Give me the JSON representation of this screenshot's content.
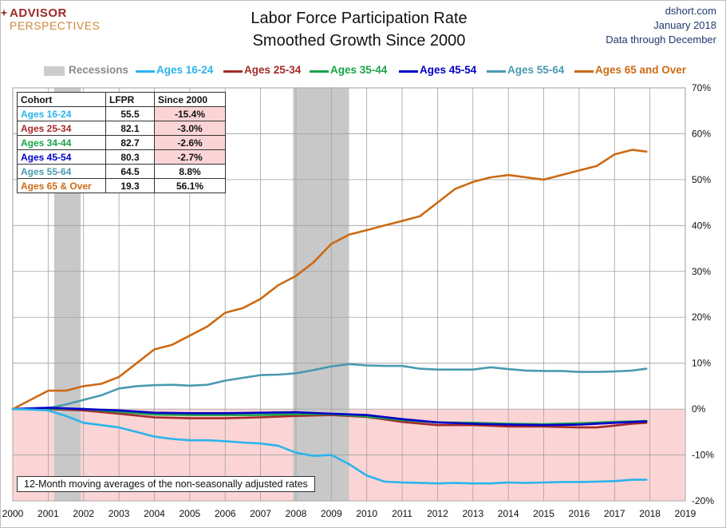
{
  "header": {
    "logo_line1": "ADVISOR",
    "logo_line2": "PERSPECTIVES",
    "title_line1": "Labor Force Participation Rate",
    "title_line2": "Smoothed Growth Since 2000",
    "source_line1": "dshort.com",
    "source_line2": "January 2018",
    "source_line3": "Data through December"
  },
  "legend": {
    "recessions_label": "Recessions",
    "recessions_color": "#c8c8c8"
  },
  "table": {
    "headers": [
      "Cohort",
      "LFPR",
      "Since 2000"
    ],
    "rows": [
      {
        "cohort": "Ages 16-24",
        "lfpr": "55.5",
        "since": "-15.4%",
        "color": "#2ab4ec",
        "negative": true
      },
      {
        "cohort": "Ages 25-34",
        "lfpr": "82.1",
        "since": "-3.0%",
        "color": "#a52a2a",
        "negative": true
      },
      {
        "cohort": "Ages 34-44",
        "lfpr": "82.7",
        "since": "-2.6%",
        "color": "#1aa34a",
        "negative": true
      },
      {
        "cohort": "Ages 45-54",
        "lfpr": "80.3",
        "since": "-2.7%",
        "color": "#0000c8",
        "negative": true
      },
      {
        "cohort": "Ages 55-64",
        "lfpr": "64.5",
        "since": "8.8%",
        "color": "#4a9ab0",
        "negative": false
      },
      {
        "cohort": "Ages 65  & Over",
        "lfpr": "19.3",
        "since": "56.1%",
        "color": "#cc6a14",
        "negative": false
      }
    ]
  },
  "note": "12-Month moving  averages of the non-seasonally adjusted rates",
  "chart_data": {
    "type": "line",
    "title": "Labor Force Participation Rate Smoothed Growth Since 2000",
    "x_ticks": [
      "2000",
      "2001",
      "2002",
      "2003",
      "2004",
      "2005",
      "2006",
      "2007",
      "2008",
      "2009",
      "2010",
      "2011",
      "2012",
      "2013",
      "2014",
      "2015",
      "2016",
      "2017",
      "2018",
      "2019"
    ],
    "y_ticks": [
      "70%",
      "60%",
      "50%",
      "40%",
      "30%",
      "20%",
      "10%",
      "0%",
      "-10%",
      "-20%"
    ],
    "xlim": [
      2000,
      2019
    ],
    "ylim": [
      -20,
      70
    ],
    "recessions": [
      [
        2001.17,
        2001.92
      ],
      [
        2007.92,
        2009.5
      ]
    ],
    "negative_region_color": "#fbd5d5",
    "grid": true,
    "series": [
      {
        "name": "Ages 16-24",
        "color": "#2ab4ec",
        "x": [
          2000,
          2000.5,
          2001,
          2001.5,
          2002,
          2002.5,
          2003,
          2003.5,
          2004,
          2004.5,
          2005,
          2005.5,
          2006,
          2006.5,
          2007,
          2007.5,
          2008,
          2008.5,
          2009,
          2009.5,
          2010,
          2010.5,
          2011,
          2011.5,
          2012,
          2012.5,
          2013,
          2013.5,
          2014,
          2014.5,
          2015,
          2015.5,
          2016,
          2016.5,
          2017,
          2017.5,
          2017.9
        ],
        "y": [
          0,
          -0.1,
          -0.3,
          -1.5,
          -3,
          -3.5,
          -4,
          -5,
          -6,
          -6.5,
          -6.8,
          -6.8,
          -7,
          -7.3,
          -7.5,
          -8,
          -9.5,
          -10.2,
          -10,
          -12,
          -14.5,
          -15.8,
          -16,
          -16.1,
          -16.2,
          -16.1,
          -16.2,
          -16.2,
          -16,
          -16.1,
          -16,
          -15.9,
          -15.9,
          -15.8,
          -15.7,
          -15.4,
          -15.4
        ]
      },
      {
        "name": "Ages 25-34",
        "color": "#a52a2a",
        "x": [
          2000,
          2001,
          2002,
          2003,
          2004,
          2005,
          2006,
          2007,
          2008,
          2009,
          2010,
          2011,
          2012,
          2013,
          2014,
          2015,
          2016,
          2016.5,
          2017,
          2017.5,
          2017.9
        ],
        "y": [
          0,
          0,
          -0.3,
          -1,
          -1.8,
          -2,
          -2,
          -1.8,
          -1.5,
          -1.3,
          -1.7,
          -2.8,
          -3.5,
          -3.5,
          -3.8,
          -3.8,
          -4,
          -4,
          -3.6,
          -3.2,
          -3
        ]
      },
      {
        "name": "Ages 35-44",
        "color": "#1aa34a",
        "x": [
          2000,
          2001,
          2002,
          2003,
          2004,
          2005,
          2006,
          2007,
          2008,
          2009,
          2010,
          2011,
          2012,
          2013,
          2014,
          2015,
          2016,
          2017,
          2017.9
        ],
        "y": [
          0,
          0.1,
          0,
          -0.6,
          -1.2,
          -1.3,
          -1.3,
          -1.3,
          -1.1,
          -1.1,
          -1.6,
          -2.4,
          -2.9,
          -3,
          -3.2,
          -3.3,
          -3.1,
          -2.8,
          -2.6
        ]
      },
      {
        "name": "Ages 45-54",
        "color": "#0000c8",
        "x": [
          2000,
          2001,
          2002,
          2003,
          2004,
          2005,
          2006,
          2007,
          2008,
          2009,
          2010,
          2011,
          2012,
          2013,
          2014,
          2015,
          2016,
          2017,
          2017.9
        ],
        "y": [
          0,
          0.3,
          0,
          -0.3,
          -0.8,
          -0.9,
          -0.9,
          -0.8,
          -0.7,
          -1,
          -1.3,
          -2.2,
          -2.9,
          -3.2,
          -3.4,
          -3.5,
          -3.4,
          -3,
          -2.7
        ]
      },
      {
        "name": "Ages 55-64",
        "color": "#4a9ab0",
        "x": [
          2000,
          2001,
          2001.5,
          2002,
          2002.5,
          2003,
          2003.5,
          2004,
          2004.5,
          2005,
          2005.5,
          2006,
          2006.5,
          2007,
          2007.5,
          2008,
          2008.5,
          2009,
          2009.5,
          2010,
          2010.5,
          2011,
          2011.5,
          2012,
          2012.5,
          2013,
          2013.5,
          2014,
          2014.5,
          2015,
          2015.5,
          2016,
          2016.5,
          2017,
          2017.5,
          2017.9
        ],
        "y": [
          0,
          0.2,
          1,
          2,
          3,
          4.5,
          5,
          5.2,
          5.3,
          5.1,
          5.3,
          6.2,
          6.8,
          7.4,
          7.5,
          7.8,
          8.5,
          9.3,
          9.8,
          9.5,
          9.4,
          9.4,
          8.8,
          8.6,
          8.6,
          8.6,
          9.1,
          8.7,
          8.4,
          8.3,
          8.3,
          8.1,
          8.1,
          8.2,
          8.4,
          8.8
        ]
      },
      {
        "name": "Ages 65 and Over",
        "color": "#cc6a14",
        "x": [
          2000,
          2000.5,
          2001,
          2001.5,
          2002,
          2002.5,
          2003,
          2003.5,
          2004,
          2004.5,
          2005,
          2005.5,
          2006,
          2006.5,
          2007,
          2007.5,
          2008,
          2008.5,
          2009,
          2009.5,
          2010,
          2010.5,
          2011,
          2011.5,
          2012,
          2012.5,
          2013,
          2013.5,
          2014,
          2014.5,
          2015,
          2015.5,
          2016,
          2016.5,
          2017,
          2017.5,
          2017.9
        ],
        "y": [
          0,
          2,
          4,
          4,
          5,
          5.5,
          7,
          10,
          13,
          14,
          16,
          18,
          21,
          22,
          24,
          27,
          29,
          32,
          36,
          38,
          39,
          40,
          41,
          42,
          45,
          48,
          49.5,
          50.5,
          51,
          50.5,
          50,
          51,
          52,
          53,
          55.5,
          56.5,
          56.1
        ]
      }
    ]
  }
}
